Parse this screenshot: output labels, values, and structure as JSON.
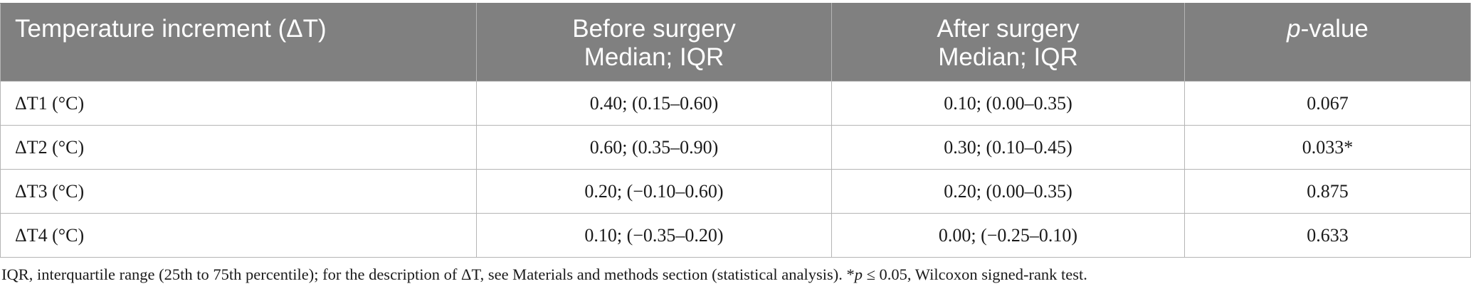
{
  "table": {
    "headers": [
      {
        "lines": [
          "Temperature increment (ΔT)"
        ]
      },
      {
        "lines": [
          "Before surgery",
          "Median; IQR"
        ]
      },
      {
        "lines": [
          "After surgery",
          "Median; IQR"
        ]
      },
      {
        "pvalue_prefix": "p",
        "pvalue_suffix": "-value"
      }
    ],
    "rows": [
      [
        "ΔT1 (°C)",
        "0.40; (0.15–0.60)",
        "0.10; (0.00–0.35)",
        "0.067"
      ],
      [
        "ΔT2 (°C)",
        "0.60; (0.35–0.90)",
        "0.30; (0.10–0.45)",
        "0.033*"
      ],
      [
        "ΔT3 (°C)",
        "0.20; (−0.10–0.60)",
        "0.20; (0.00–0.35)",
        "0.875"
      ],
      [
        "ΔT4 (°C)",
        "0.10; (−0.35–0.20)",
        "0.00; (−0.25–0.10)",
        "0.633"
      ]
    ]
  },
  "footnote": {
    "text_before": "IQR, interquartile range (25th to 75th percentile); for the description of ΔT, see Materials and methods section (statistical analysis). *",
    "italic": "p",
    "text_after": " ≤ 0.05, Wilcoxon signed-rank test."
  }
}
